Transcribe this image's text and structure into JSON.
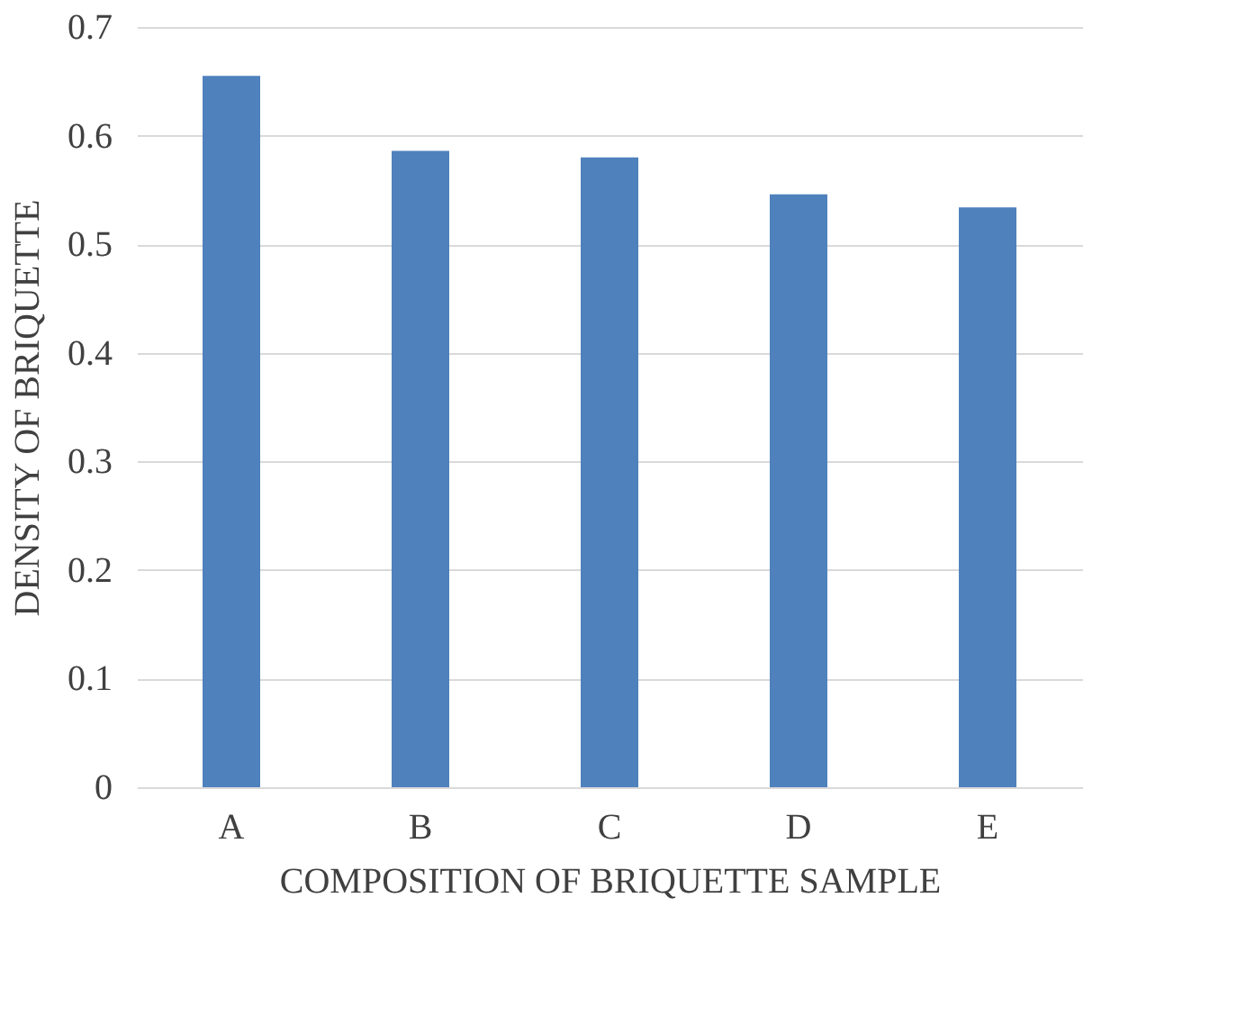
{
  "chart_data": {
    "type": "bar",
    "xlabel": "COMPOSITION OF BRIQUETTE SAMPLE",
    "ylabel": "DENSITY OF BRIQUETTE",
    "categories": [
      "A",
      "B",
      "C",
      "D",
      "E"
    ],
    "values": [
      0.655,
      0.586,
      0.58,
      0.546,
      0.534
    ],
    "color": "#4f81bd",
    "ylim": [
      0,
      0.7
    ],
    "yticks": [
      0,
      0.1,
      0.2,
      0.3,
      0.4,
      0.5,
      0.6,
      0.7
    ],
    "grid": "y"
  }
}
